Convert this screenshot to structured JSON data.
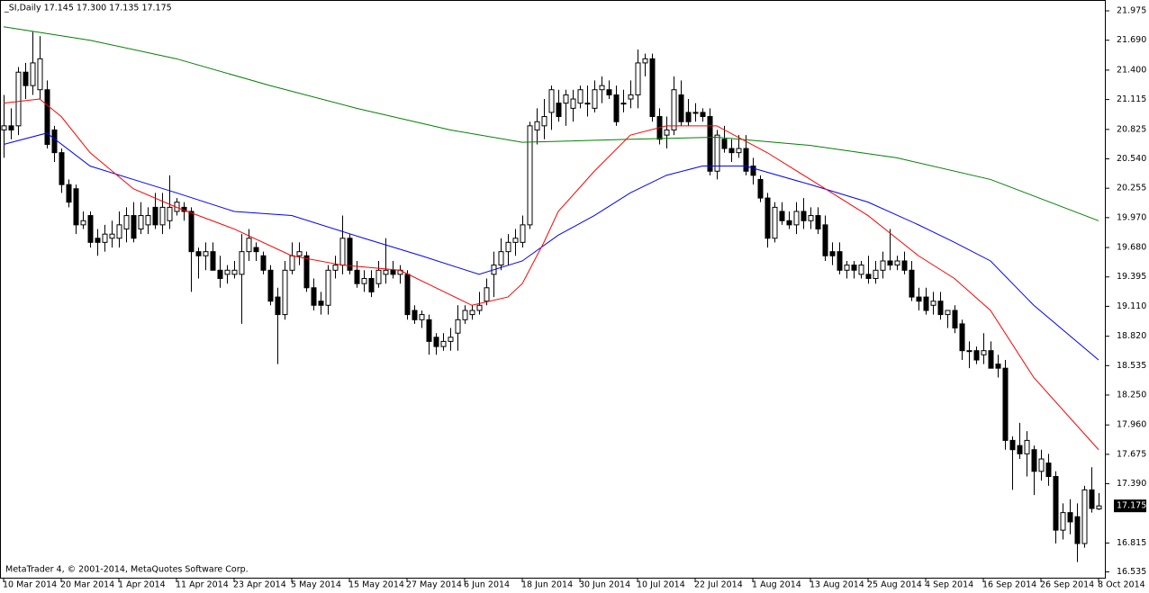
{
  "chart_data": {
    "type": "candlestick",
    "title": "_SI,Daily  17.145 17.300 17.135 17.175",
    "footer": "MetaTrader 4, © 2001-2014, MetaQuotes Software Corp.",
    "categories": [
      "10 Mar 2014",
      null,
      null,
      null,
      null,
      null,
      null,
      null,
      "20 Mar 2014",
      null,
      null,
      null,
      null,
      null,
      null,
      null,
      "1 Apr 2014",
      null,
      null,
      null,
      null,
      null,
      null,
      null,
      "11 Apr 2014",
      null,
      null,
      null,
      null,
      null,
      null,
      null,
      "23 Apr 2014",
      null,
      null,
      null,
      null,
      null,
      null,
      null,
      "5 May 2014",
      null,
      null,
      null,
      null,
      null,
      null,
      null,
      "15 May 2014",
      null,
      null,
      null,
      null,
      null,
      null,
      null,
      "27 May 2014",
      null,
      null,
      null,
      null,
      null,
      null,
      null,
      "6 Jun 2014",
      null,
      null,
      null,
      null,
      null,
      null,
      null,
      "18 Jun 2014",
      null,
      null,
      null,
      null,
      null,
      null,
      null,
      "30 Jun 2014",
      null,
      null,
      null,
      null,
      null,
      null,
      null,
      "10 Jul 2014",
      null,
      null,
      null,
      null,
      null,
      null,
      null,
      "22 Jul 2014",
      null,
      null,
      null,
      null,
      null,
      null,
      null,
      "1 Aug 2014",
      null,
      null,
      null,
      null,
      null,
      null,
      null,
      "13 Aug 2014",
      null,
      null,
      null,
      null,
      null,
      null,
      null,
      "25 Aug 2014",
      null,
      null,
      null,
      null,
      null,
      null,
      null,
      "4 Sep 2014",
      null,
      null,
      null,
      null,
      null,
      null,
      null,
      "16 Sep 2014",
      null,
      null,
      null,
      null,
      null,
      null,
      null,
      "26 Sep 2014",
      null,
      null,
      null,
      null,
      null,
      null,
      null,
      "8 Oct 2014"
    ],
    "open": [
      20.82,
      20.86,
      20.86,
      21.38,
      21.25,
      21.21,
      21.21,
      20.82,
      20.6,
      20.29,
      20.25,
      19.9,
      19.99,
      19.77,
      19.73,
      19.77,
      19.77,
      19.86,
      19.99,
      19.86,
      19.9,
      20.07,
      19.9,
      19.94,
      20.03,
      20.07,
      20.03,
      19.64,
      19.6,
      19.64,
      19.46,
      19.42,
      19.42,
      19.42,
      19.64,
      19.68,
      19.6,
      19.46,
      19.2,
      19.03,
      19.46,
      19.6,
      19.6,
      19.29,
      19.16,
      19.12,
      19.46,
      19.51,
      19.77,
      19.46,
      19.33,
      19.38,
      19.33,
      19.42,
      19.46,
      19.42,
      19.42,
      19.07,
      18.98,
      18.98,
      18.81,
      18.72,
      18.77,
      18.85,
      18.98,
      19.03,
      19.07,
      19.16,
      19.42,
      19.51,
      19.64,
      19.73,
      19.73,
      19.9,
      20.82,
      20.86,
      20.99,
      21.08,
      21.08,
      21.03,
      21.08,
      21.08,
      21.03,
      21.21,
      21.21,
      21.16,
      21.08,
      21.12,
      21.16,
      21.47,
      21.51,
      20.95,
      20.77,
      20.82,
      21.16,
      20.99,
      20.99,
      20.99,
      20.95,
      20.42,
      20.73,
      20.64,
      20.6,
      20.64,
      20.47,
      20.34,
      20.16,
      19.77,
      20.03,
      19.94,
      19.9,
      20.03,
      19.94,
      19.99,
      19.9,
      19.64,
      19.64,
      19.46,
      19.51,
      19.42,
      19.42,
      19.38,
      19.46,
      19.55,
      19.51,
      19.55,
      19.46,
      19.2,
      19.2,
      19.12,
      19.16,
      19.03,
      19.07,
      18.94,
      18.68,
      18.68,
      18.64,
      18.68,
      18.55,
      18.51,
      17.81,
      17.76,
      17.68,
      17.72,
      17.51,
      17.59,
      17.46,
      16.94,
      17.11,
      17.07,
      16.81,
      17.33,
      17.145
    ],
    "high": [
      21.16,
      21.03,
      21.43,
      21.47,
      21.77,
      21.73,
      21.3,
      20.86,
      20.64,
      20.34,
      20.29,
      20.03,
      20.03,
      19.86,
      19.9,
      19.94,
      20.03,
      20.07,
      20.12,
      20.12,
      20.07,
      20.21,
      20.21,
      20.38,
      20.16,
      20.12,
      20.07,
      19.68,
      19.73,
      19.73,
      19.6,
      19.51,
      19.55,
      19.81,
      19.86,
      19.73,
      19.64,
      19.51,
      19.29,
      19.55,
      19.73,
      19.73,
      19.64,
      19.38,
      19.25,
      19.51,
      19.6,
      19.99,
      19.81,
      19.55,
      19.46,
      19.46,
      19.55,
      19.77,
      19.55,
      19.51,
      19.46,
      19.12,
      19.07,
      19.03,
      18.85,
      18.85,
      18.9,
      19.12,
      19.12,
      19.12,
      19.25,
      19.38,
      19.64,
      19.77,
      19.81,
      19.86,
      19.99,
      20.9,
      21.03,
      21.12,
      21.25,
      21.21,
      21.21,
      21.21,
      21.25,
      21.25,
      21.3,
      21.34,
      21.3,
      21.25,
      21.21,
      21.3,
      21.6,
      21.56,
      21.56,
      21.03,
      20.95,
      21.34,
      21.3,
      21.12,
      21.08,
      21.03,
      21.03,
      20.82,
      20.86,
      20.73,
      20.77,
      20.77,
      20.55,
      20.38,
      20.21,
      20.12,
      20.12,
      20.03,
      20.12,
      20.16,
      20.07,
      20.07,
      19.99,
      19.73,
      19.73,
      19.55,
      19.55,
      19.55,
      19.6,
      19.55,
      19.64,
      19.86,
      19.6,
      19.64,
      19.55,
      19.29,
      19.29,
      19.25,
      19.25,
      19.07,
      19.12,
      18.98,
      18.77,
      18.72,
      18.85,
      18.77,
      18.64,
      18.59,
      17.85,
      17.98,
      17.9,
      17.76,
      17.72,
      17.68,
      17.51,
      17.2,
      17.24,
      17.2,
      17.37,
      17.55,
      17.3
    ],
    "low": [
      20.55,
      20.73,
      20.77,
      21.12,
      21.16,
      21.12,
      20.64,
      20.51,
      20.21,
      20.07,
      19.81,
      19.86,
      19.68,
      19.6,
      19.64,
      19.68,
      19.68,
      19.73,
      19.73,
      19.81,
      19.81,
      19.86,
      19.81,
      19.86,
      19.99,
      19.94,
      19.25,
      19.38,
      19.46,
      19.46,
      19.29,
      19.33,
      19.38,
      18.94,
      19.55,
      19.55,
      19.42,
      19.12,
      18.55,
      18.98,
      19.42,
      19.51,
      19.25,
      19.07,
      19.03,
      19.03,
      19.38,
      19.42,
      19.42,
      19.29,
      19.25,
      19.2,
      19.29,
      19.33,
      19.38,
      19.33,
      18.98,
      18.94,
      18.9,
      18.64,
      18.64,
      18.68,
      18.68,
      18.68,
      18.94,
      18.98,
      19.03,
      19.12,
      19.2,
      19.46,
      19.51,
      19.6,
      19.68,
      19.86,
      20.68,
      20.73,
      20.82,
      20.9,
      20.86,
      20.9,
      21.03,
      20.95,
      20.99,
      21.08,
      21.12,
      20.86,
      20.99,
      21.03,
      21.03,
      21.34,
      20.9,
      20.68,
      20.64,
      20.77,
      20.86,
      20.86,
      20.9,
      20.9,
      20.38,
      20.34,
      20.6,
      20.51,
      20.55,
      20.38,
      20.29,
      20.12,
      19.68,
      19.73,
      19.9,
      19.86,
      19.81,
      19.86,
      19.86,
      19.81,
      19.55,
      19.51,
      19.42,
      19.38,
      19.38,
      19.38,
      19.33,
      19.33,
      19.38,
      19.46,
      19.46,
      19.42,
      19.16,
      19.07,
      19.03,
      19.03,
      18.98,
      18.9,
      18.85,
      18.59,
      18.51,
      18.55,
      18.55,
      18.51,
      18.42,
      17.72,
      17.33,
      17.63,
      17.46,
      17.28,
      17.42,
      17.37,
      16.81,
      16.85,
      16.9,
      16.63,
      16.77,
      17.11,
      17.135
    ],
    "close": [
      20.86,
      20.82,
      21.38,
      21.25,
      21.47,
      21.51,
      20.68,
      20.6,
      20.29,
      20.12,
      19.9,
      19.94,
      19.73,
      19.73,
      19.81,
      19.81,
      19.9,
      19.99,
      19.77,
      19.99,
      19.99,
      19.9,
      20.07,
      20.07,
      20.12,
      20.03,
      19.64,
      19.6,
      19.64,
      19.46,
      19.38,
      19.46,
      19.46,
      19.64,
      19.77,
      19.64,
      19.46,
      19.16,
      19.03,
      19.46,
      19.6,
      19.64,
      19.29,
      19.12,
      19.12,
      19.46,
      19.51,
      19.77,
      19.46,
      19.33,
      19.38,
      19.25,
      19.46,
      19.46,
      19.42,
      19.46,
      19.03,
      18.98,
      19.03,
      18.77,
      18.72,
      18.77,
      18.81,
      18.98,
      19.07,
      19.07,
      19.12,
      19.29,
      19.51,
      19.64,
      19.73,
      19.77,
      19.9,
      20.86,
      20.9,
      20.95,
      21.21,
      20.95,
      21.16,
      21.12,
      21.21,
      21.08,
      21.21,
      21.25,
      21.16,
      20.9,
      21.08,
      21.16,
      21.47,
      21.51,
      20.95,
      20.73,
      20.82,
      21.21,
      20.9,
      20.9,
      20.99,
      20.95,
      20.42,
      20.77,
      20.64,
      20.6,
      20.64,
      20.42,
      20.38,
      20.16,
      19.77,
      20.07,
      19.94,
      19.9,
      20.03,
      19.94,
      19.99,
      19.86,
      19.6,
      19.6,
      19.46,
      19.51,
      19.46,
      19.51,
      19.38,
      19.46,
      19.55,
      19.51,
      19.55,
      19.46,
      19.2,
      19.16,
      19.07,
      19.16,
      19.03,
      19.07,
      18.9,
      18.68,
      18.68,
      18.59,
      18.68,
      18.51,
      18.51,
      17.81,
      17.72,
      17.68,
      17.81,
      17.51,
      17.63,
      17.46,
      16.94,
      17.11,
      17.02,
      16.81,
      17.33,
      17.15,
      17.175
    ],
    "lines": [
      {
        "color": "#008000",
        "x": [
          0,
          12,
          24,
          37,
          49,
          62,
          72,
          87,
          99,
          112,
          124,
          137,
          152
        ],
        "values": [
          21.82,
          21.69,
          21.51,
          21.25,
          21.03,
          20.82,
          20.7,
          20.73,
          20.75,
          20.67,
          20.55,
          20.34,
          19.94
        ]
      },
      {
        "color": "#0000ff",
        "x": [
          0,
          6,
          12,
          18,
          24,
          32,
          40,
          50,
          58,
          66,
          72,
          77,
          82,
          87,
          92,
          97,
          103,
          112,
          120,
          127,
          132,
          137,
          143,
          152
        ],
        "values": [
          20.68,
          20.79,
          20.47,
          20.34,
          20.21,
          20.03,
          19.99,
          19.77,
          19.6,
          19.42,
          19.55,
          19.8,
          19.99,
          20.21,
          20.38,
          20.47,
          20.47,
          20.29,
          20.12,
          19.9,
          19.73,
          19.55,
          19.12,
          18.59
        ]
      },
      {
        "color": "#ff0000",
        "x": [
          0,
          5,
          8,
          12,
          18,
          24,
          32,
          40,
          47,
          55,
          60,
          65,
          70,
          72,
          75,
          77,
          82,
          87,
          92,
          99,
          106,
          112,
          120,
          127,
          132,
          137,
          143,
          152
        ],
        "values": [
          21.08,
          21.12,
          20.95,
          20.6,
          20.25,
          20.07,
          19.86,
          19.6,
          19.51,
          19.46,
          19.29,
          19.12,
          19.2,
          19.33,
          19.73,
          20.03,
          20.42,
          20.77,
          20.86,
          20.86,
          20.6,
          20.34,
          19.99,
          19.6,
          19.38,
          19.07,
          18.42,
          17.72
        ]
      }
    ],
    "ylim": [
      16.47,
      22.08
    ],
    "yticks": [
      21.975,
      {
        "value": 21.69,
        "label": "21.690"
      },
      {
        "value": 21.4,
        "label": "21.400"
      },
      21.115,
      20.825,
      {
        "value": 20.54,
        "label": "20.540"
      },
      20.255,
      {
        "value": 19.97,
        "label": "19.970"
      },
      {
        "value": 19.68,
        "label": "19.680"
      },
      19.395,
      {
        "value": 19.11,
        "label": "19.110"
      },
      {
        "value": 18.82,
        "label": "18.820"
      },
      18.535,
      {
        "value": 18.25,
        "label": "18.250"
      },
      {
        "value": 17.96,
        "label": "17.960"
      },
      17.675,
      {
        "value": 17.39,
        "label": "17.390"
      },
      16.815,
      16.535
    ],
    "last_price": {
      "value": 17.175,
      "label": "17.175"
    },
    "up_color": "#ffffff",
    "down_color": "#000000"
  }
}
